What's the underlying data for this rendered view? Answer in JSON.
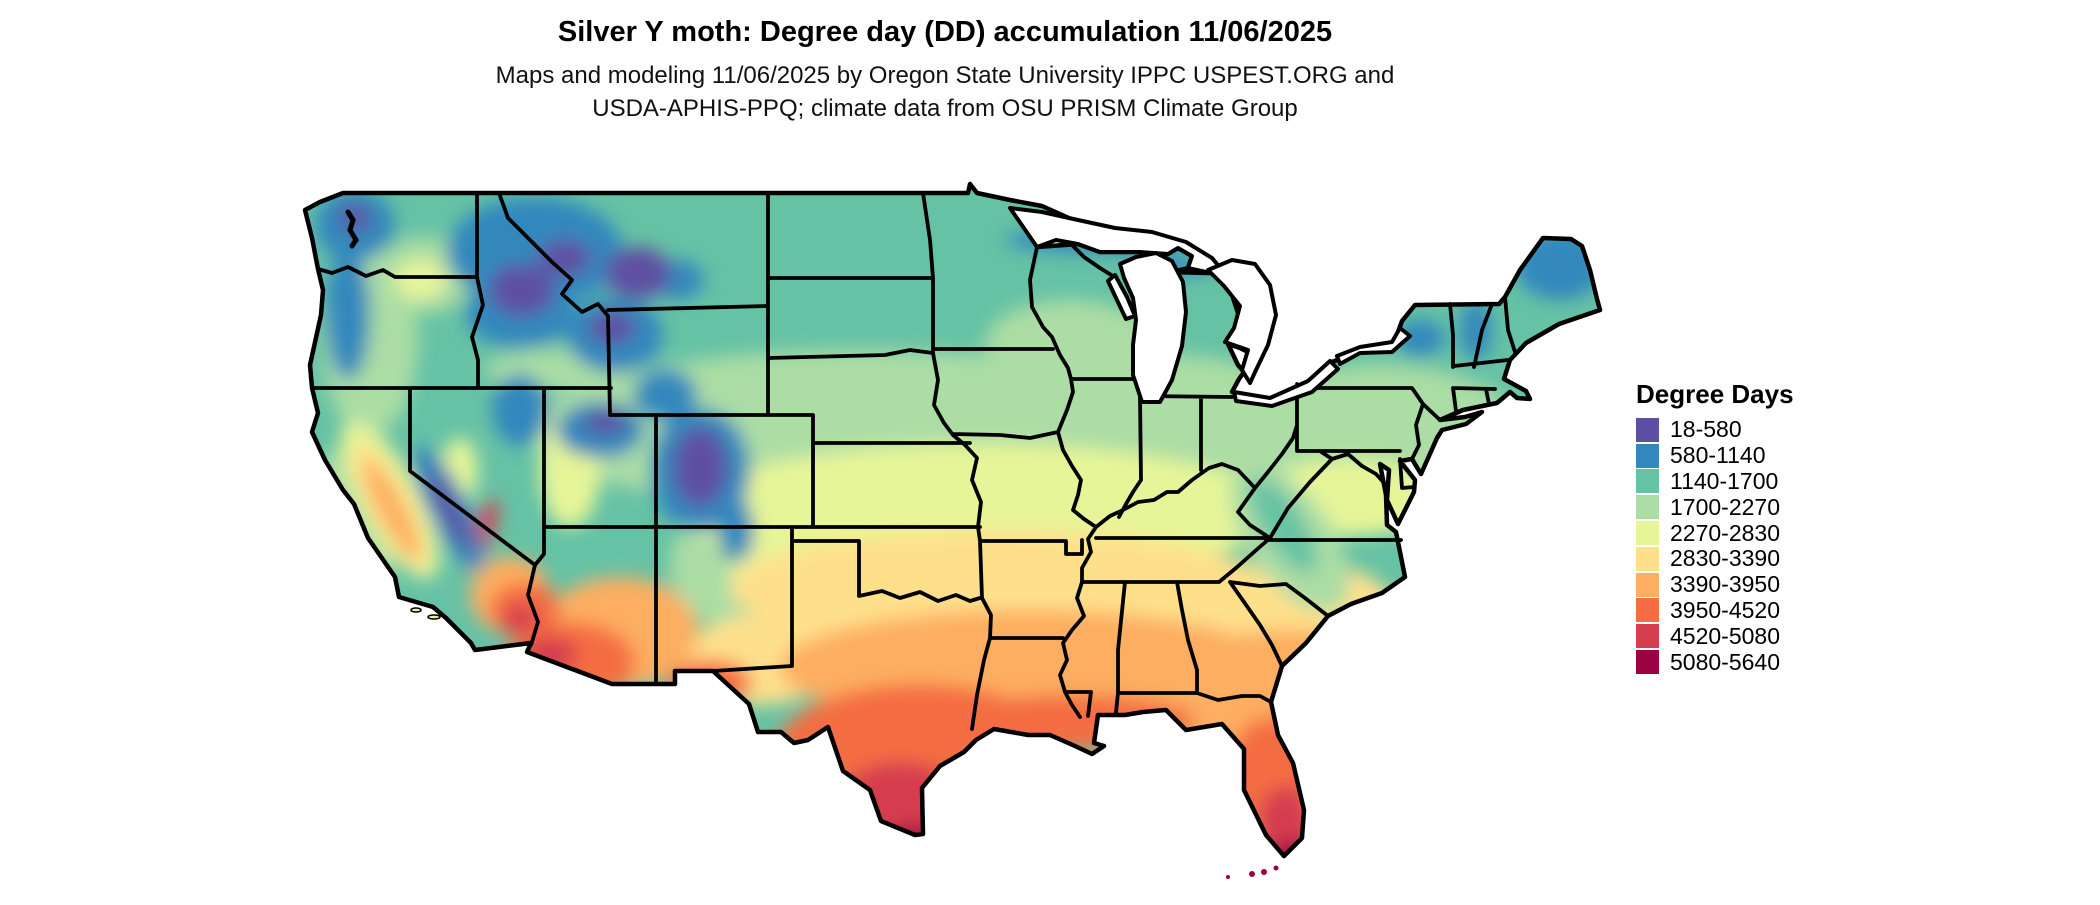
{
  "header": {
    "title": "Silver Y moth: Degree day (DD) accumulation 11/06/2025",
    "subtitle_line1": "Maps and modeling 11/06/2025 by Oregon State University IPPC USPEST.ORG and",
    "subtitle_line2": "USDA-APHIS-PPQ; climate data from OSU PRISM Climate Group"
  },
  "legend": {
    "title": "Degree Days",
    "items": [
      {
        "label": "18-580",
        "color": "#5e4fa2"
      },
      {
        "label": "580-1140",
        "color": "#3288bd"
      },
      {
        "label": "1140-1700",
        "color": "#66c2a5"
      },
      {
        "label": "1700-2270",
        "color": "#abdda4"
      },
      {
        "label": "2270-2830",
        "color": "#e6f598"
      },
      {
        "label": "2830-3390",
        "color": "#fee08b"
      },
      {
        "label": "3390-3950",
        "color": "#fdae61"
      },
      {
        "label": "3950-4520",
        "color": "#f46d43"
      },
      {
        "label": "4520-5080",
        "color": "#d53e4f"
      },
      {
        "label": "5080-5640",
        "color": "#9e0142"
      }
    ]
  },
  "map": {
    "region": "Contiguous United States",
    "kind": "degree-day accumulation raster",
    "base_color": "#66c2a5",
    "border_color": "#000000",
    "water_color": "#ffffff"
  }
}
